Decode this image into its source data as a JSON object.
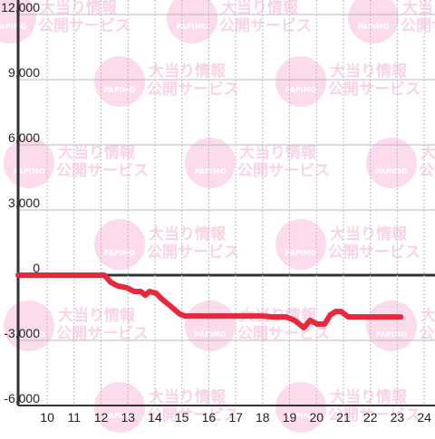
{
  "chart_data": {
    "type": "line",
    "watermark": {
      "logo": "PAPIMO",
      "line_1": "大当り情報",
      "line_2": "公開サービス"
    },
    "xlim": [
      8.92,
      24.4
    ],
    "xticks": [
      10,
      11,
      12,
      13,
      14,
      15,
      16,
      17,
      18,
      19,
      20,
      21,
      22,
      23,
      24
    ],
    "ylim": [
      -6000,
      12000
    ],
    "yticks": [
      {
        "value": -6000,
        "label": "-6,000"
      },
      {
        "value": -3000,
        "label": "-3,000"
      },
      0,
      {
        "value": 3000,
        "label": "3,000"
      },
      {
        "value": 6000,
        "label": "6,000"
      },
      {
        "value": 9000,
        "label": "9,000"
      },
      {
        "value": 12000,
        "label": "12,000"
      }
    ],
    "grid": true,
    "series": [
      {
        "color": "#e8283c",
        "x": [
          8.92,
          12.12,
          12.36,
          12.63,
          12.96,
          13.23,
          13.47,
          13.64,
          13.8,
          14.04,
          14.24,
          14.65,
          14.92,
          15.12,
          18.01,
          18.35,
          18.86,
          19.19,
          19.53,
          19.76,
          20.03,
          20.3,
          20.51,
          20.71,
          20.91,
          21.18,
          21.55,
          23.13
        ],
        "values": [
          0,
          0,
          -330,
          -500,
          -580,
          -750,
          -750,
          -920,
          -750,
          -830,
          -1080,
          -1500,
          -1790,
          -1880,
          -1880,
          -1920,
          -1920,
          -2080,
          -2420,
          -2080,
          -2250,
          -2250,
          -1830,
          -1670,
          -1670,
          -1920,
          -1920,
          -1920
        ]
      }
    ]
  }
}
